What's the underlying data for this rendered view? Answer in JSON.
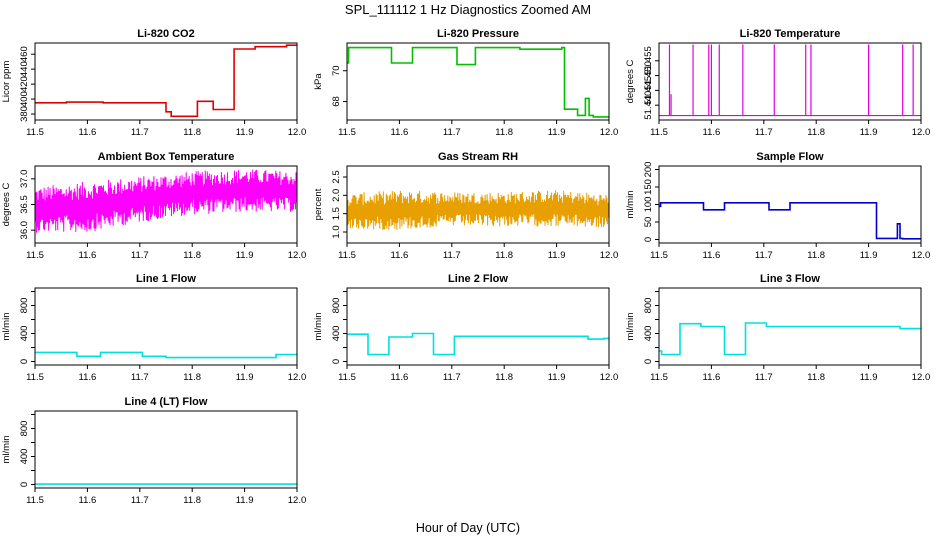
{
  "figure": {
    "title": "SPL_111112  1 Hz Diagnostics Zoomed AM",
    "xlabel": "Hour of Day (UTC)"
  },
  "chart_data": [
    {
      "id": "co2",
      "type": "line",
      "title": "Li-820 CO2",
      "ylabel": "Licor ppm",
      "color": "#e00000",
      "xlim": [
        11.5,
        12.0
      ],
      "ylim": [
        372,
        475
      ],
      "xticks": [
        11.5,
        11.6,
        11.7,
        11.8,
        11.9,
        12.0
      ],
      "xtick_labels": [
        "11.5",
        "11.6",
        "11.7",
        "11.8",
        "11.9",
        "12.0"
      ],
      "yticks": [
        380,
        400,
        420,
        440,
        460
      ],
      "ytick_labels": [
        "380",
        "400",
        "420",
        "440",
        "460"
      ],
      "x": [
        11.5,
        11.56,
        11.56,
        11.63,
        11.63,
        11.75,
        11.75,
        11.76,
        11.76,
        11.81,
        11.81,
        11.84,
        11.84,
        11.88,
        11.88,
        11.92,
        11.92,
        11.98,
        11.98,
        12.0
      ],
      "y": [
        395,
        395,
        396,
        396,
        395,
        395,
        383,
        383,
        377,
        377,
        397,
        397,
        386,
        386,
        467,
        467,
        470,
        470,
        472,
        472
      ]
    },
    {
      "id": "pressure",
      "type": "line",
      "title": "Li-820 Pressure",
      "ylabel": "kPa",
      "color": "#00c000",
      "xlim": [
        11.5,
        12.0
      ],
      "ylim": [
        66.8,
        71.8
      ],
      "xticks": [
        11.5,
        11.6,
        11.7,
        11.8,
        11.9,
        12.0
      ],
      "xtick_labels": [
        "11.5",
        "11.6",
        "11.7",
        "11.8",
        "11.9",
        "12.0"
      ],
      "yticks": [
        68,
        70
      ],
      "ytick_labels": [
        "68",
        "70"
      ],
      "x": [
        11.5,
        11.503,
        11.503,
        11.585,
        11.585,
        11.625,
        11.625,
        11.71,
        11.71,
        11.745,
        11.745,
        11.83,
        11.83,
        11.91,
        11.91,
        11.915,
        11.915,
        11.94,
        11.94,
        11.955,
        11.955,
        11.962,
        11.962,
        11.97,
        11.97,
        12.0
      ],
      "y": [
        70.5,
        70.5,
        71.5,
        71.5,
        70.5,
        70.5,
        71.5,
        71.5,
        70.4,
        70.4,
        71.5,
        71.5,
        71.4,
        71.4,
        71.5,
        71.5,
        67.5,
        67.5,
        67.1,
        67.1,
        68.2,
        68.2,
        67.1,
        67.1,
        67.0,
        67.0
      ]
    },
    {
      "id": "temp",
      "type": "line",
      "title": "Li-820 Temperature",
      "ylabel": "degrees C",
      "color": "#e000e0",
      "xlim": [
        11.5,
        12.0
      ],
      "ylim": [
        51.435,
        51.461
      ],
      "xticks": [
        11.5,
        11.6,
        11.7,
        11.8,
        11.9,
        12.0
      ],
      "xtick_labels": [
        "11.5",
        "11.6",
        "11.7",
        "11.8",
        "11.9",
        "12.0"
      ],
      "yticks": [
        51.44,
        51.445,
        51.45,
        51.455
      ],
      "ytick_labels": [
        "51.440",
        "51.445",
        "51.450",
        "51.455"
      ],
      "baseline": 51.4365,
      "spike_top": 51.4605,
      "spikes": [
        11.52,
        11.565,
        11.595,
        11.6,
        11.615,
        11.66,
        11.72,
        11.78,
        11.79,
        11.9,
        11.965,
        11.985
      ],
      "small_spikes": [
        11.523
      ]
    },
    {
      "id": "ambient",
      "type": "band",
      "title": "Ambient Box Temperature",
      "ylabel": "degrees C",
      "color": "#ff00ff",
      "xlim": [
        11.5,
        12.0
      ],
      "ylim": [
        35.75,
        37.25
      ],
      "xticks": [
        11.5,
        11.6,
        11.7,
        11.8,
        11.9,
        12.0
      ],
      "xtick_labels": [
        "11.5",
        "11.6",
        "11.7",
        "11.8",
        "11.9",
        "12.0"
      ],
      "yticks": [
        36.0,
        36.5,
        37.0
      ],
      "ytick_labels": [
        "36.0",
        "36.5",
        "37.0"
      ],
      "x": [
        11.5,
        11.6,
        11.7,
        11.8,
        11.9,
        12.0
      ],
      "low": [
        35.95,
        35.95,
        36.15,
        36.3,
        36.35,
        36.35
      ],
      "high": [
        36.85,
        36.95,
        37.05,
        37.15,
        37.2,
        37.15
      ]
    },
    {
      "id": "rh",
      "type": "band",
      "title": "Gas Stream RH",
      "ylabel": "percent",
      "color": "#e8a000",
      "xlim": [
        11.5,
        12.0
      ],
      "ylim": [
        0.7,
        2.8
      ],
      "xticks": [
        11.5,
        11.6,
        11.7,
        11.8,
        11.9,
        12.0
      ],
      "xtick_labels": [
        "11.5",
        "11.6",
        "11.7",
        "11.8",
        "11.9",
        "12.0"
      ],
      "yticks": [
        1.0,
        1.5,
        2.0,
        2.5
      ],
      "ytick_labels": [
        "1.0",
        "1.5",
        "2.0",
        "2.5"
      ],
      "x": [
        11.5,
        11.6,
        11.7,
        11.8,
        11.9,
        12.0
      ],
      "low": [
        1.05,
        1.05,
        1.15,
        1.15,
        1.15,
        1.1
      ],
      "high": [
        2.05,
        2.15,
        2.1,
        2.1,
        2.15,
        2.05
      ]
    },
    {
      "id": "sample",
      "type": "line",
      "title": "Sample Flow",
      "ylabel": "ml/min",
      "color": "#0000d0",
      "xlim": [
        11.5,
        12.0
      ],
      "ylim": [
        -10,
        210
      ],
      "xticks": [
        11.5,
        11.6,
        11.7,
        11.8,
        11.9,
        12.0
      ],
      "xtick_labels": [
        "11.5",
        "11.6",
        "11.7",
        "11.8",
        "11.9",
        "12.0"
      ],
      "yticks": [
        0,
        50,
        100,
        150,
        200
      ],
      "ytick_labels": [
        "0",
        "50",
        "100",
        "150",
        "200"
      ],
      "x": [
        11.5,
        11.503,
        11.503,
        11.585,
        11.585,
        11.625,
        11.625,
        11.71,
        11.71,
        11.75,
        11.75,
        11.915,
        11.915,
        11.955,
        11.955,
        11.96,
        11.96,
        11.965,
        11.965,
        12.0
      ],
      "y": [
        95,
        95,
        105,
        105,
        85,
        85,
        105,
        105,
        85,
        85,
        105,
        105,
        3,
        3,
        45,
        45,
        3,
        3,
        2,
        2
      ]
    },
    {
      "id": "line1",
      "type": "line",
      "title": "Line 1 Flow",
      "ylabel": "ml/min",
      "color": "#00e0e0",
      "xlim": [
        11.5,
        12.0
      ],
      "ylim": [
        -50,
        1050
      ],
      "xticks": [
        11.5,
        11.6,
        11.7,
        11.8,
        11.9,
        12.0
      ],
      "xtick_labels": [
        "11.5",
        "11.6",
        "11.7",
        "11.8",
        "11.9",
        "12.0"
      ],
      "yticks": [
        0,
        200,
        400,
        600,
        800,
        1000
      ],
      "ytick_labels": [
        "0",
        "400",
        "800"
      ],
      "ytick_label_values": [
        0,
        400,
        800
      ],
      "x": [
        11.5,
        11.58,
        11.58,
        11.625,
        11.625,
        11.705,
        11.705,
        11.75,
        11.75,
        11.96,
        11.96,
        12.0
      ],
      "y": [
        130,
        130,
        75,
        75,
        130,
        130,
        75,
        75,
        55,
        55,
        100,
        100
      ]
    },
    {
      "id": "line2",
      "type": "line",
      "title": "Line 2 Flow",
      "ylabel": "ml/min",
      "color": "#00e0e0",
      "xlim": [
        11.5,
        12.0
      ],
      "ylim": [
        -50,
        1050
      ],
      "xticks": [
        11.5,
        11.6,
        11.7,
        11.8,
        11.9,
        12.0
      ],
      "xtick_labels": [
        "11.5",
        "11.6",
        "11.7",
        "11.8",
        "11.9",
        "12.0"
      ],
      "yticks": [
        0,
        200,
        400,
        600,
        800,
        1000
      ],
      "ytick_labels": [
        "0",
        "400",
        "800"
      ],
      "ytick_label_values": [
        0,
        400,
        800
      ],
      "x": [
        11.5,
        11.54,
        11.54,
        11.58,
        11.58,
        11.625,
        11.625,
        11.665,
        11.665,
        11.705,
        11.705,
        11.96,
        11.96,
        11.99,
        11.99,
        12.0
      ],
      "y": [
        390,
        390,
        100,
        100,
        350,
        350,
        400,
        400,
        100,
        100,
        360,
        360,
        320,
        320,
        330,
        330
      ]
    },
    {
      "id": "line3",
      "type": "line",
      "title": "Line 3 Flow",
      "ylabel": "ml/min",
      "color": "#00e0e0",
      "xlim": [
        11.5,
        12.0
      ],
      "ylim": [
        -50,
        1050
      ],
      "xticks": [
        11.5,
        11.6,
        11.7,
        11.8,
        11.9,
        12.0
      ],
      "xtick_labels": [
        "11.5",
        "11.6",
        "11.7",
        "11.8",
        "11.9",
        "12.0"
      ],
      "yticks": [
        0,
        200,
        400,
        600,
        800,
        1000
      ],
      "ytick_labels": [
        "0",
        "400",
        "800"
      ],
      "ytick_label_values": [
        0,
        400,
        800
      ],
      "x": [
        11.5,
        11.505,
        11.505,
        11.54,
        11.54,
        11.58,
        11.58,
        11.625,
        11.625,
        11.665,
        11.665,
        11.705,
        11.705,
        11.96,
        11.96,
        12.0
      ],
      "y": [
        150,
        150,
        100,
        100,
        540,
        540,
        500,
        500,
        100,
        100,
        550,
        550,
        500,
        500,
        470,
        470
      ]
    },
    {
      "id": "line4",
      "type": "line",
      "title": "Line 4 (LT) Flow",
      "ylabel": "ml/min",
      "color": "#00e0e0",
      "xlim": [
        11.5,
        12.0
      ],
      "ylim": [
        -50,
        1050
      ],
      "xticks": [
        11.5,
        11.6,
        11.7,
        11.8,
        11.9,
        12.0
      ],
      "xtick_labels": [
        "11.5",
        "11.6",
        "11.7",
        "11.8",
        "11.9",
        "12.0"
      ],
      "yticks": [
        0,
        200,
        400,
        600,
        800,
        1000
      ],
      "ytick_labels": [
        "0",
        "400",
        "800"
      ],
      "ytick_label_values": [
        0,
        400,
        800
      ],
      "x": [
        11.5,
        12.0
      ],
      "y": [
        5,
        5
      ]
    }
  ]
}
